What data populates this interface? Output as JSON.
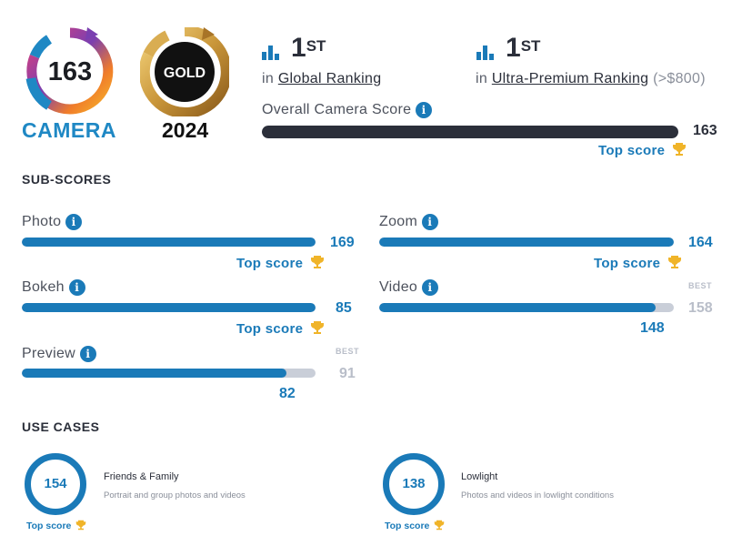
{
  "badge": {
    "camera_score": "163",
    "camera_label": "CAMERA",
    "gold_label": "GOLD",
    "year": "2024"
  },
  "ranking": {
    "global": {
      "place_num": "1",
      "place_suffix": "ST",
      "prefix": "in",
      "link": "Global Ranking"
    },
    "segment": {
      "place_num": "1",
      "place_suffix": "ST",
      "prefix": "in",
      "link": "Ultra-Premium Ranking",
      "extra": "(>$800)"
    }
  },
  "overall": {
    "label": "Overall Camera Score",
    "score": "163",
    "top_label": "Top score",
    "fill_fraction": 1.0
  },
  "subscores": {
    "title": "SUB-SCORES",
    "items": [
      {
        "label": "Photo",
        "score": "169",
        "top_label": "Top score",
        "fill_fraction": 1.0
      },
      {
        "label": "Zoom",
        "score": "164",
        "top_label": "Top score",
        "fill_fraction": 1.0
      },
      {
        "label": "Bokeh",
        "score": "85",
        "top_label": "Top score",
        "fill_fraction": 1.0
      },
      {
        "label": "Video",
        "score": "148",
        "best_label": "BEST",
        "best": "158",
        "fill_fraction": 0.937
      },
      {
        "label": "Preview",
        "score": "82",
        "best_label": "BEST",
        "best": "91",
        "fill_fraction": 0.901
      }
    ]
  },
  "use_cases": {
    "title": "USE CASES",
    "items": [
      {
        "score": "154",
        "title": "Friends & Family",
        "desc": "Portrait and group photos and videos",
        "top_label": "Top score"
      },
      {
        "score": "138",
        "title": "Lowlight",
        "desc": "Photos and videos in lowlight conditions",
        "top_label": "Top score"
      }
    ]
  },
  "colors": {
    "accent_blue": "#1a7ab8",
    "overall_bar": "#2b2f3a",
    "camera_label": "#1f88c4",
    "gold": "#c9963a",
    "trophy": "#f0b429"
  },
  "icons": [
    "info-icon",
    "bar-chart-icon",
    "trophy-icon"
  ]
}
